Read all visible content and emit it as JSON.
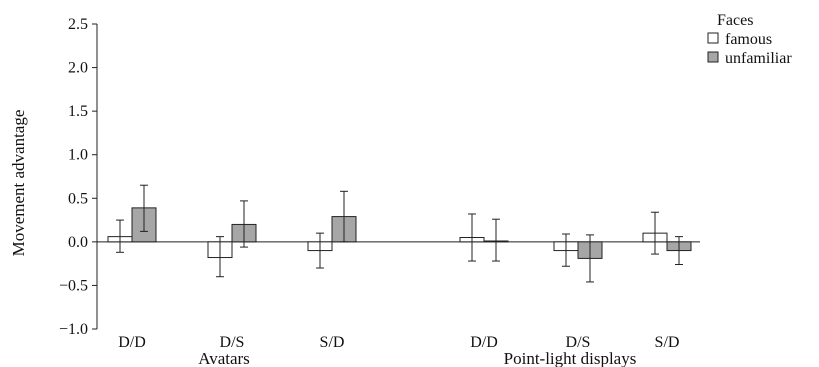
{
  "chart_data": {
    "type": "bar",
    "ylabel": "Movement advantage",
    "ylim": [
      -1.0,
      2.5
    ],
    "yticks": [
      "2.5",
      "2.0",
      "1.5",
      "1.0",
      "0.5",
      "0.0",
      "−0.5",
      "−1.0"
    ],
    "ytick_values": [
      2.5,
      2.0,
      1.5,
      1.0,
      0.5,
      0.0,
      -0.5,
      -1.0
    ],
    "groups": [
      {
        "label": "Avatars",
        "categories": [
          "D/D",
          "D/S",
          "S/D"
        ]
      },
      {
        "label": "Point-light displays",
        "categories": [
          "D/D",
          "D/S",
          "S/D"
        ]
      }
    ],
    "legend": {
      "title": "Faces",
      "position": "top-right"
    },
    "series": [
      {
        "name": "famous",
        "color": "#ffffff",
        "values": [
          0.06,
          -0.18,
          -0.1,
          0.05,
          -0.1,
          0.1
        ],
        "err_low": [
          -0.12,
          -0.4,
          -0.3,
          -0.22,
          -0.28,
          -0.14
        ],
        "err_high": [
          0.25,
          0.06,
          0.1,
          0.32,
          0.09,
          0.34
        ]
      },
      {
        "name": "unfamiliar",
        "color": "#a6a6a6",
        "values": [
          0.39,
          0.2,
          0.29,
          0.01,
          -0.19,
          -0.1
        ],
        "err_low": [
          0.12,
          -0.06,
          0.0,
          -0.22,
          -0.46,
          -0.26
        ],
        "err_high": [
          0.65,
          0.47,
          0.58,
          0.26,
          0.08,
          0.06
        ]
      }
    ],
    "grid": false
  }
}
